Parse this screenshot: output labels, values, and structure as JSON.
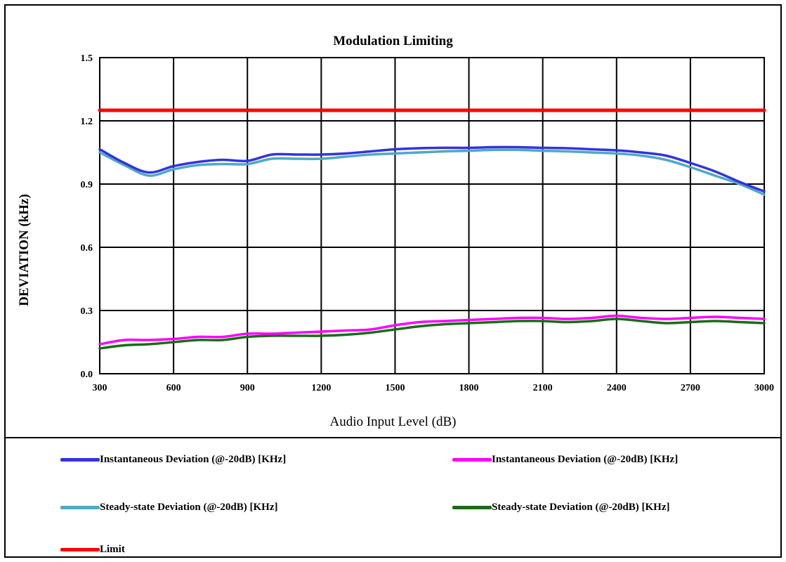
{
  "chart_data": {
    "type": "line",
    "title": "Modulation Limiting",
    "xlabel": "Audio Input Level (dB)",
    "ylabel": "DEVIATION (kHz)",
    "xlim": [
      300,
      3000
    ],
    "ylim": [
      0.0,
      1.5
    ],
    "x_ticks": [
      "300",
      "600",
      "900",
      "1200",
      "1500",
      "1800",
      "2100",
      "2400",
      "2700",
      "3000"
    ],
    "y_ticks": [
      "0.0",
      "0.3",
      "0.6",
      "0.9",
      "1.2",
      "1.5"
    ],
    "grid": true,
    "legend_position": "bottom",
    "x": [
      300,
      400,
      500,
      600,
      700,
      800,
      900,
      1000,
      1100,
      1200,
      1300,
      1400,
      1500,
      1600,
      1700,
      1800,
      1900,
      2000,
      2100,
      2200,
      2300,
      2400,
      2500,
      2600,
      2700,
      2800,
      2900,
      3000
    ],
    "series": [
      {
        "name": "Instantaneous Deviation (@-20dB) [KHz]",
        "color": "#3333dd",
        "values": [
          1.065,
          1.0,
          0.955,
          0.985,
          1.005,
          1.015,
          1.01,
          1.04,
          1.04,
          1.04,
          1.045,
          1.055,
          1.065,
          1.07,
          1.072,
          1.072,
          1.075,
          1.075,
          1.072,
          1.07,
          1.065,
          1.06,
          1.05,
          1.035,
          1.0,
          0.96,
          0.91,
          0.865
        ]
      },
      {
        "name": "Instantaneous Deviation (@-20dB) [KHz]",
        "color": "#ff00ff",
        "values": [
          0.14,
          0.16,
          0.16,
          0.165,
          0.175,
          0.175,
          0.19,
          0.19,
          0.195,
          0.2,
          0.205,
          0.21,
          0.23,
          0.245,
          0.25,
          0.255,
          0.26,
          0.265,
          0.265,
          0.26,
          0.265,
          0.275,
          0.265,
          0.26,
          0.265,
          0.27,
          0.265,
          0.26
        ]
      },
      {
        "name": "Steady-state Deviation (@-20dB) [KHz]",
        "color": "#4fa8c8",
        "values": [
          1.05,
          0.99,
          0.94,
          0.97,
          0.99,
          0.995,
          0.995,
          1.02,
          1.02,
          1.02,
          1.03,
          1.04,
          1.045,
          1.05,
          1.055,
          1.058,
          1.062,
          1.062,
          1.058,
          1.055,
          1.05,
          1.045,
          1.035,
          1.015,
          0.98,
          0.94,
          0.9,
          0.85
        ]
      },
      {
        "name": "Steady-state Deviation (@-20dB) [KHz]",
        "color": "#1a6b1a",
        "values": [
          0.12,
          0.135,
          0.14,
          0.15,
          0.16,
          0.16,
          0.175,
          0.18,
          0.18,
          0.18,
          0.185,
          0.195,
          0.21,
          0.225,
          0.235,
          0.24,
          0.245,
          0.25,
          0.25,
          0.245,
          0.25,
          0.26,
          0.25,
          0.24,
          0.245,
          0.25,
          0.245,
          0.24
        ]
      },
      {
        "name": "Limit",
        "color": "#ff0000",
        "values": [
          1.25,
          1.25,
          1.25,
          1.25,
          1.25,
          1.25,
          1.25,
          1.25,
          1.25,
          1.25,
          1.25,
          1.25,
          1.25,
          1.25,
          1.25,
          1.25,
          1.25,
          1.25,
          1.25,
          1.25,
          1.25,
          1.25,
          1.25,
          1.25,
          1.25,
          1.25,
          1.25,
          1.25
        ]
      }
    ]
  }
}
